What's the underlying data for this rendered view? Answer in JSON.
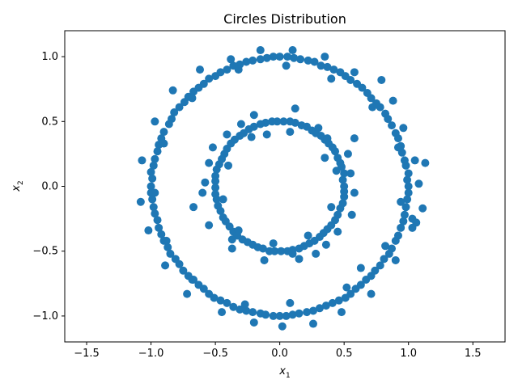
{
  "chart_data": {
    "type": "scatter",
    "title": "Circles Distribution",
    "xlabel": {
      "base": "x",
      "sub": "1"
    },
    "ylabel": {
      "base": "x",
      "sub": "2"
    },
    "xlim": [
      -1.67,
      1.75
    ],
    "ylim": [
      -1.2,
      1.2
    ],
    "xticks": [
      -1.5,
      -1.0,
      -0.5,
      0.0,
      0.5,
      1.0,
      1.5
    ],
    "xtick_labels": [
      "−1.5",
      "−1.0",
      "−0.5",
      "0.0",
      "0.5",
      "1.0",
      "1.5"
    ],
    "yticks": [
      -1.0,
      -0.5,
      0.0,
      0.5,
      1.0
    ],
    "ytick_labels": [
      "−1.0",
      "−0.5",
      "0.0",
      "0.5",
      "1.0"
    ],
    "grid": false,
    "marker_color": "#1f77b4",
    "series": [
      {
        "points": [
          [
            1.0,
            0.0
          ],
          [
            0.99,
            0.05
          ],
          [
            1.0,
            0.1
          ],
          [
            0.98,
            0.16
          ],
          [
            0.97,
            0.2
          ],
          [
            0.95,
            0.26
          ],
          [
            0.94,
            0.31
          ],
          [
            0.92,
            0.37
          ],
          [
            0.9,
            0.41
          ],
          [
            0.87,
            0.47
          ],
          [
            0.84,
            0.52
          ],
          [
            0.82,
            0.56
          ],
          [
            0.78,
            0.61
          ],
          [
            0.75,
            0.64
          ],
          [
            0.71,
            0.68
          ],
          [
            0.68,
            0.72
          ],
          [
            0.64,
            0.76
          ],
          [
            0.6,
            0.79
          ],
          [
            0.55,
            0.82
          ],
          [
            0.51,
            0.85
          ],
          [
            0.47,
            0.88
          ],
          [
            0.42,
            0.9
          ],
          [
            0.37,
            0.92
          ],
          [
            0.32,
            0.93
          ],
          [
            0.27,
            0.96
          ],
          [
            0.22,
            0.97
          ],
          [
            0.16,
            0.98
          ],
          [
            0.11,
            0.99
          ],
          [
            0.06,
            1.0
          ],
          [
            0.0,
            1.0
          ],
          [
            -0.05,
            1.0
          ],
          [
            -0.1,
            0.99
          ],
          [
            -0.15,
            0.98
          ],
          [
            -0.21,
            0.97
          ],
          [
            -0.26,
            0.96
          ],
          [
            -0.31,
            0.94
          ],
          [
            -0.36,
            0.93
          ],
          [
            -0.41,
            0.9
          ],
          [
            -0.46,
            0.88
          ],
          [
            -0.5,
            0.85
          ],
          [
            -0.55,
            0.83
          ],
          [
            -0.59,
            0.79
          ],
          [
            -0.63,
            0.76
          ],
          [
            -0.67,
            0.73
          ],
          [
            -0.71,
            0.69
          ],
          [
            -0.74,
            0.65
          ],
          [
            -0.78,
            0.61
          ],
          [
            -0.82,
            0.57
          ],
          [
            -0.84,
            0.52
          ],
          [
            -0.86,
            0.48
          ],
          [
            -0.9,
            0.42
          ],
          [
            -0.92,
            0.37
          ],
          [
            -0.94,
            0.32
          ],
          [
            -0.95,
            0.27
          ],
          [
            -0.97,
            0.21
          ],
          [
            -0.98,
            0.16
          ],
          [
            -1.0,
            0.11
          ],
          [
            -0.99,
            0.06
          ],
          [
            -1.0,
            0.0
          ],
          [
            -1.0,
            -0.05
          ],
          [
            -0.99,
            -0.1
          ],
          [
            -0.98,
            -0.16
          ],
          [
            -0.97,
            -0.21
          ],
          [
            -0.95,
            -0.26
          ],
          [
            -0.94,
            -0.32
          ],
          [
            -0.92,
            -0.37
          ],
          [
            -0.9,
            -0.42
          ],
          [
            -0.87,
            -0.47
          ],
          [
            -0.85,
            -0.52
          ],
          [
            -0.81,
            -0.56
          ],
          [
            -0.78,
            -0.6
          ],
          [
            -0.75,
            -0.65
          ],
          [
            -0.71,
            -0.69
          ],
          [
            -0.67,
            -0.72
          ],
          [
            -0.63,
            -0.76
          ],
          [
            -0.59,
            -0.79
          ],
          [
            -0.55,
            -0.83
          ],
          [
            -0.51,
            -0.86
          ],
          [
            -0.46,
            -0.88
          ],
          [
            -0.41,
            -0.9
          ],
          [
            -0.36,
            -0.93
          ],
          [
            -0.31,
            -0.95
          ],
          [
            -0.26,
            -0.96
          ],
          [
            -0.21,
            -0.97
          ],
          [
            -0.15,
            -0.98
          ],
          [
            -0.11,
            -0.99
          ],
          [
            -0.05,
            -1.0
          ],
          [
            0.0,
            -1.0
          ],
          [
            0.05,
            -1.0
          ],
          [
            0.1,
            -0.99
          ],
          [
            0.15,
            -0.98
          ],
          [
            0.21,
            -0.97
          ],
          [
            0.26,
            -0.96
          ],
          [
            0.31,
            -0.94
          ],
          [
            0.36,
            -0.92
          ],
          [
            0.41,
            -0.9
          ],
          [
            0.46,
            -0.88
          ],
          [
            0.51,
            -0.86
          ],
          [
            0.55,
            -0.83
          ],
          [
            0.59,
            -0.79
          ],
          [
            0.63,
            -0.76
          ],
          [
            0.67,
            -0.72
          ],
          [
            0.71,
            -0.69
          ],
          [
            0.74,
            -0.65
          ],
          [
            0.78,
            -0.61
          ],
          [
            0.81,
            -0.56
          ],
          [
            0.85,
            -0.52
          ],
          [
            0.87,
            -0.48
          ],
          [
            0.9,
            -0.42
          ],
          [
            0.92,
            -0.38
          ],
          [
            0.94,
            -0.32
          ],
          [
            0.96,
            -0.27
          ],
          [
            0.97,
            -0.22
          ],
          [
            0.98,
            -0.16
          ],
          [
            0.99,
            -0.1
          ],
          [
            1.0,
            -0.05
          ],
          [
            1.05,
            0.2
          ],
          [
            1.08,
            0.02
          ],
          [
            1.13,
            0.18
          ],
          [
            1.11,
            -0.17
          ],
          [
            1.06,
            -0.28
          ],
          [
            1.03,
            -0.32
          ],
          [
            0.96,
            0.45
          ],
          [
            0.88,
            0.66
          ],
          [
            0.79,
            0.82
          ],
          [
            0.58,
            0.88
          ],
          [
            0.35,
            1.0
          ],
          [
            0.1,
            1.05
          ],
          [
            -0.15,
            1.05
          ],
          [
            -0.38,
            0.98
          ],
          [
            -0.62,
            0.9
          ],
          [
            -0.83,
            0.74
          ],
          [
            -0.97,
            0.5
          ],
          [
            -1.07,
            0.2
          ],
          [
            -1.08,
            -0.12
          ],
          [
            -1.02,
            -0.34
          ],
          [
            -0.89,
            -0.61
          ],
          [
            -0.72,
            -0.83
          ],
          [
            -0.45,
            -0.97
          ],
          [
            -0.2,
            -1.05
          ],
          [
            0.02,
            -1.08
          ],
          [
            0.26,
            -1.06
          ],
          [
            0.48,
            -0.97
          ],
          [
            0.71,
            -0.83
          ],
          [
            0.9,
            -0.57
          ],
          [
            1.03,
            -0.25
          ],
          [
            0.63,
            -0.63
          ],
          [
            0.52,
            -0.78
          ],
          [
            0.08,
            -0.9
          ],
          [
            -0.27,
            -0.91
          ],
          [
            -0.68,
            -0.72
          ],
          [
            -0.88,
            -0.42
          ],
          [
            -0.97,
            -0.05
          ],
          [
            -0.9,
            0.33
          ],
          [
            -0.68,
            0.68
          ],
          [
            -0.32,
            0.9
          ],
          [
            0.05,
            0.93
          ],
          [
            0.4,
            0.83
          ],
          [
            0.72,
            0.61
          ],
          [
            0.92,
            0.3
          ],
          [
            0.94,
            -0.12
          ],
          [
            0.82,
            -0.46
          ],
          [
            0.5,
            0.0
          ],
          [
            0.49,
            0.05
          ],
          [
            0.5,
            0.1
          ],
          [
            0.48,
            0.15
          ],
          [
            0.47,
            0.18
          ],
          [
            0.45,
            0.22
          ],
          [
            0.43,
            0.27
          ],
          [
            0.41,
            0.3
          ],
          [
            0.38,
            0.33
          ],
          [
            0.35,
            0.36
          ],
          [
            0.32,
            0.39
          ],
          [
            0.28,
            0.41
          ],
          [
            0.25,
            0.43
          ],
          [
            0.21,
            0.46
          ],
          [
            0.17,
            0.47
          ],
          [
            0.12,
            0.49
          ],
          [
            0.08,
            0.5
          ],
          [
            0.03,
            0.5
          ],
          [
            -0.02,
            0.5
          ],
          [
            -0.06,
            0.5
          ],
          [
            -0.11,
            0.49
          ],
          [
            -0.15,
            0.48
          ],
          [
            -0.2,
            0.46
          ],
          [
            -0.24,
            0.44
          ],
          [
            -0.28,
            0.41
          ],
          [
            -0.31,
            0.39
          ],
          [
            -0.35,
            0.36
          ],
          [
            -0.38,
            0.33
          ],
          [
            -0.41,
            0.29
          ],
          [
            -0.43,
            0.25
          ],
          [
            -0.45,
            0.21
          ],
          [
            -0.47,
            0.17
          ],
          [
            -0.49,
            0.13
          ],
          [
            -0.5,
            0.08
          ],
          [
            -0.5,
            0.04
          ],
          [
            -0.5,
            -0.01
          ],
          [
            -0.5,
            -0.06
          ],
          [
            -0.49,
            -0.1
          ],
          [
            -0.48,
            -0.15
          ],
          [
            -0.46,
            -0.19
          ],
          [
            -0.44,
            -0.24
          ],
          [
            -0.42,
            -0.27
          ],
          [
            -0.39,
            -0.31
          ],
          [
            -0.36,
            -0.35
          ],
          [
            -0.33,
            -0.38
          ],
          [
            -0.29,
            -0.41
          ],
          [
            -0.25,
            -0.43
          ],
          [
            -0.21,
            -0.45
          ],
          [
            -0.17,
            -0.47
          ],
          [
            -0.13,
            -0.48
          ],
          [
            -0.08,
            -0.5
          ],
          [
            -0.04,
            -0.5
          ],
          [
            0.01,
            -0.5
          ],
          [
            0.06,
            -0.5
          ],
          [
            0.1,
            -0.49
          ],
          [
            0.15,
            -0.48
          ],
          [
            0.19,
            -0.46
          ],
          [
            0.23,
            -0.44
          ],
          [
            0.27,
            -0.42
          ],
          [
            0.31,
            -0.39
          ],
          [
            0.34,
            -0.36
          ],
          [
            0.37,
            -0.33
          ],
          [
            0.4,
            -0.3
          ],
          [
            0.43,
            -0.26
          ],
          [
            0.45,
            -0.22
          ],
          [
            0.47,
            -0.17
          ],
          [
            0.49,
            -0.13
          ],
          [
            0.5,
            -0.08
          ],
          [
            0.5,
            -0.04
          ],
          [
            0.55,
            0.1
          ],
          [
            0.58,
            -0.05
          ],
          [
            0.53,
            0.25
          ],
          [
            0.37,
            0.37
          ],
          [
            0.12,
            0.6
          ],
          [
            -0.2,
            0.55
          ],
          [
            -0.41,
            0.4
          ],
          [
            -0.55,
            0.18
          ],
          [
            -0.6,
            -0.05
          ],
          [
            -0.55,
            -0.3
          ],
          [
            -0.37,
            -0.48
          ],
          [
            -0.12,
            -0.57
          ],
          [
            0.15,
            -0.56
          ],
          [
            0.36,
            -0.45
          ],
          [
            0.56,
            -0.22
          ],
          [
            0.44,
            0.12
          ],
          [
            0.35,
            0.22
          ],
          [
            0.08,
            0.42
          ],
          [
            -0.22,
            0.38
          ],
          [
            -0.4,
            0.16
          ],
          [
            -0.44,
            -0.1
          ],
          [
            -0.32,
            -0.34
          ],
          [
            -0.05,
            -0.44
          ],
          [
            0.22,
            -0.38
          ],
          [
            0.4,
            -0.16
          ],
          [
            0.58,
            0.37
          ],
          [
            -0.67,
            -0.16
          ],
          [
            -0.58,
            0.03
          ],
          [
            0.3,
            0.45
          ],
          [
            -0.1,
            0.4
          ],
          [
            -0.37,
            -0.41
          ],
          [
            0.28,
            -0.52
          ],
          [
            0.45,
            -0.35
          ],
          [
            0.1,
            -0.52
          ],
          [
            -0.3,
            0.48
          ],
          [
            -0.52,
            0.3
          ]
        ]
      }
    ]
  }
}
